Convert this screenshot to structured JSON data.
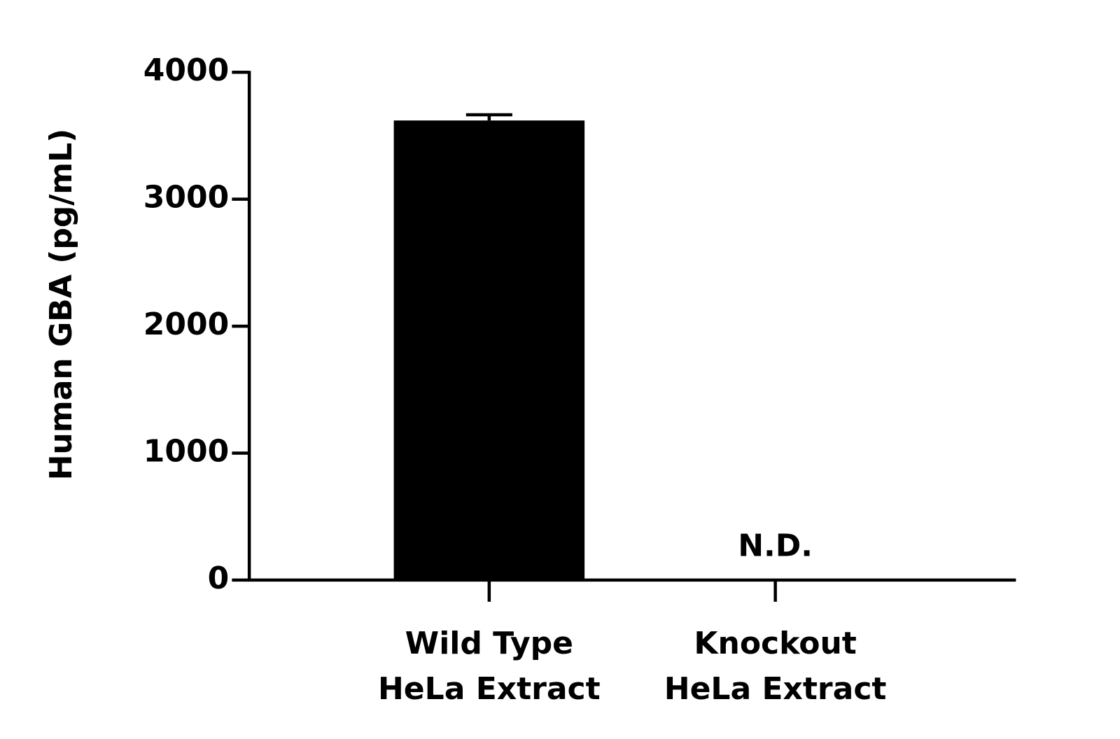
{
  "chart_data": {
    "type": "bar",
    "y_label": "Human GBA (pg/mL)",
    "categories": [
      [
        "Wild Type",
        "HeLa Extract"
      ],
      [
        "Knockout",
        "HeLa Extract"
      ]
    ],
    "values": [
      3620,
      null
    ],
    "value_labels": [
      null,
      "N.D."
    ],
    "errors": [
      45,
      null
    ],
    "color": "#000000",
    "ylim": [
      0,
      4000
    ],
    "yticks": [
      0,
      1000,
      2000,
      3000,
      4000
    ],
    "grid": false
  }
}
